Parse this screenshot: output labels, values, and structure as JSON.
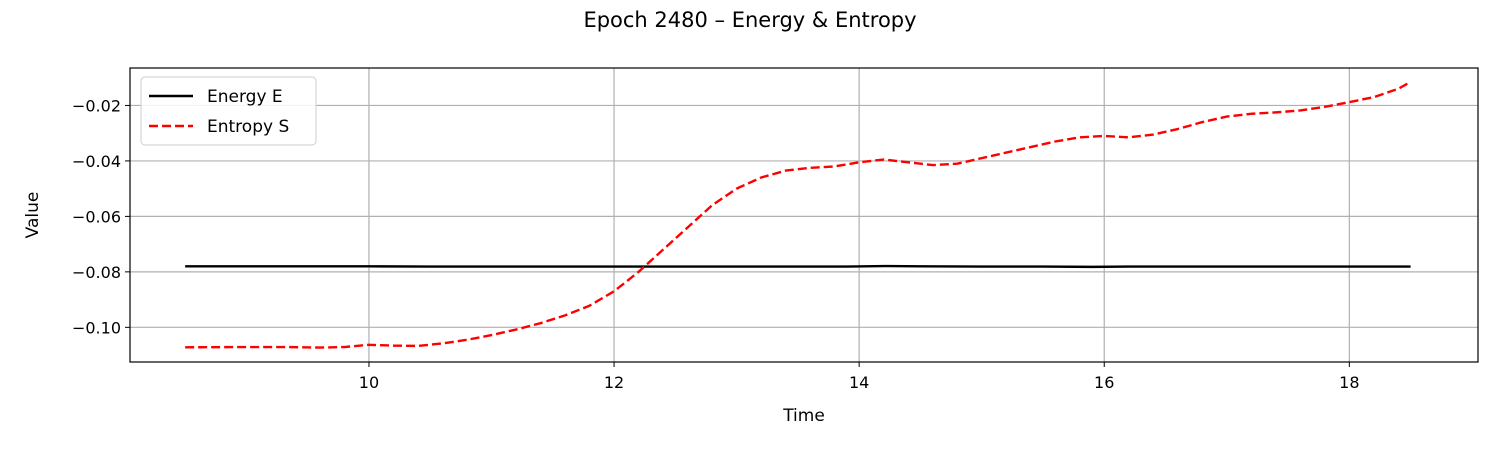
{
  "chart_data": {
    "type": "line",
    "title": "Epoch 2480 – Energy & Entropy",
    "xlabel": "Time",
    "ylabel": "Value",
    "xlim": [
      8.05,
      19.05
    ],
    "ylim": [
      -0.1125,
      -0.0065
    ],
    "xticks": [
      10,
      12,
      14,
      16,
      18
    ],
    "yticks": [
      -0.1,
      -0.08,
      -0.06,
      -0.04,
      -0.02
    ],
    "xtick_labels": [
      "10",
      "12",
      "14",
      "16",
      "18"
    ],
    "ytick_labels": [
      "−0.10",
      "−0.08",
      "−0.06",
      "−0.04",
      "−0.02"
    ],
    "grid": true,
    "legend_position": "upper-left",
    "series": [
      {
        "name": "Energy E",
        "color": "#000000",
        "style": "solid",
        "x": [
          8.5,
          9.0,
          9.5,
          10.0,
          10.5,
          11.0,
          11.5,
          12.0,
          12.5,
          13.0,
          13.5,
          13.9,
          14.2,
          14.5,
          15.0,
          15.5,
          15.9,
          16.2,
          16.5,
          17.0,
          17.5,
          18.0,
          18.5
        ],
        "y": [
          -0.078,
          -0.078,
          -0.078,
          -0.078,
          -0.0781,
          -0.0781,
          -0.0781,
          -0.0781,
          -0.0781,
          -0.0781,
          -0.0781,
          -0.0781,
          -0.0779,
          -0.078,
          -0.0781,
          -0.0781,
          -0.0782,
          -0.0781,
          -0.0781,
          -0.0781,
          -0.0781,
          -0.0781,
          -0.0781
        ]
      },
      {
        "name": "Entropy S",
        "color": "#ff0000",
        "style": "dashed",
        "x": [
          8.5,
          9.0,
          9.3,
          9.6,
          9.8,
          10.0,
          10.2,
          10.4,
          10.6,
          10.8,
          11.0,
          11.2,
          11.4,
          11.6,
          11.8,
          12.0,
          12.2,
          12.4,
          12.6,
          12.8,
          13.0,
          13.2,
          13.4,
          13.6,
          13.8,
          14.0,
          14.2,
          14.4,
          14.6,
          14.8,
          15.0,
          15.2,
          15.4,
          15.6,
          15.8,
          16.0,
          16.2,
          16.4,
          16.6,
          16.8,
          17.0,
          17.2,
          17.4,
          17.6,
          17.8,
          18.0,
          18.2,
          18.4,
          18.5
        ],
        "y": [
          -0.1072,
          -0.1071,
          -0.1071,
          -0.1073,
          -0.1071,
          -0.1063,
          -0.1066,
          -0.1067,
          -0.1058,
          -0.1045,
          -0.1028,
          -0.1008,
          -0.0985,
          -0.0957,
          -0.0922,
          -0.087,
          -0.08,
          -0.072,
          -0.064,
          -0.056,
          -0.05,
          -0.046,
          -0.0435,
          -0.0425,
          -0.042,
          -0.0405,
          -0.0395,
          -0.0405,
          -0.0415,
          -0.041,
          -0.039,
          -0.037,
          -0.035,
          -0.033,
          -0.0315,
          -0.031,
          -0.0315,
          -0.0305,
          -0.0285,
          -0.026,
          -0.024,
          -0.023,
          -0.0225,
          -0.0218,
          -0.0205,
          -0.0188,
          -0.017,
          -0.014,
          -0.0115
        ]
      }
    ]
  }
}
